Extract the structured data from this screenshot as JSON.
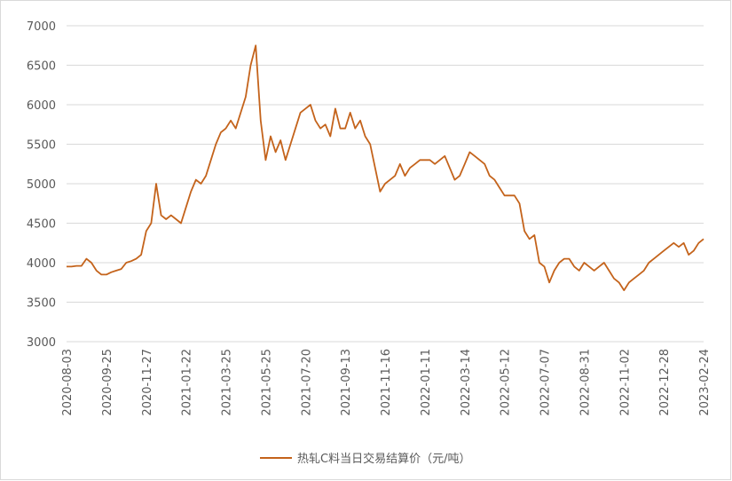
{
  "chart_data": {
    "type": "line",
    "categories": [
      "2020-08-03",
      null,
      null,
      null,
      null,
      null,
      null,
      null,
      "2020-09-25",
      null,
      null,
      null,
      null,
      null,
      null,
      null,
      "2020-11-27",
      null,
      null,
      null,
      null,
      null,
      null,
      null,
      "2021-01-22",
      null,
      null,
      null,
      null,
      null,
      null,
      null,
      "2021-03-25",
      null,
      null,
      null,
      null,
      null,
      null,
      null,
      "2021-05-25",
      null,
      null,
      null,
      null,
      null,
      null,
      null,
      "2021-07-20",
      null,
      null,
      null,
      null,
      null,
      null,
      null,
      "2021-09-13",
      null,
      null,
      null,
      null,
      null,
      null,
      null,
      "2021-11-16",
      null,
      null,
      null,
      null,
      null,
      null,
      null,
      "2022-01-11",
      null,
      null,
      null,
      null,
      null,
      null,
      null,
      "2022-03-14",
      null,
      null,
      null,
      null,
      null,
      null,
      null,
      "2022-05-12",
      null,
      null,
      null,
      null,
      null,
      null,
      null,
      "2022-07-07",
      null,
      null,
      null,
      null,
      null,
      null,
      null,
      "2022-08-31",
      null,
      null,
      null,
      null,
      null,
      null,
      null,
      "2022-11-02",
      null,
      null,
      null,
      null,
      null,
      null,
      null,
      "2022-12-28",
      null,
      null,
      null,
      null,
      null,
      null,
      null,
      "2023-02-24"
    ],
    "series": [
      {
        "name": "热轧C料当日交易结算价（元/吨）",
        "color": "#c4631b",
        "values": [
          3950,
          3950,
          3960,
          3960,
          4050,
          4000,
          3900,
          3850,
          3850,
          3880,
          3900,
          3920,
          4000,
          4020,
          4050,
          4100,
          4400,
          4500,
          5000,
          4600,
          4550,
          4600,
          4550,
          4500,
          4700,
          4900,
          5050,
          5000,
          5100,
          5300,
          5500,
          5650,
          5700,
          5800,
          5700,
          5900,
          6100,
          6500,
          6750,
          5800,
          5300,
          5600,
          5400,
          5550,
          5300,
          5500,
          5700,
          5900,
          5950,
          6000,
          5800,
          5700,
          5750,
          5600,
          5950,
          5700,
          5700,
          5900,
          5700,
          5800,
          5600,
          5500,
          5200,
          4900,
          5000,
          5050,
          5100,
          5250,
          5100,
          5200,
          5250,
          5300,
          5300,
          5300,
          5250,
          5300,
          5350,
          5200,
          5050,
          5100,
          5250,
          5400,
          5350,
          5300,
          5250,
          5100,
          5050,
          4950,
          4850,
          4850,
          4850,
          4750,
          4400,
          4300,
          4350,
          4000,
          3950,
          3750,
          3900,
          4000,
          4050,
          4050,
          3950,
          3900,
          4000,
          3950,
          3900,
          3950,
          4000,
          3900,
          3800,
          3750,
          3650,
          3750,
          3800,
          3850,
          3900,
          4000,
          4050,
          4100,
          4150,
          4200,
          4250,
          4200,
          4250,
          4100,
          4150,
          4250,
          4300
        ]
      }
    ],
    "ylim": [
      3000,
      7000
    ],
    "yticks": [
      3000,
      3500,
      4000,
      4500,
      5000,
      5500,
      6000,
      6500,
      7000
    ],
    "grid": true,
    "legend": "bottom"
  }
}
